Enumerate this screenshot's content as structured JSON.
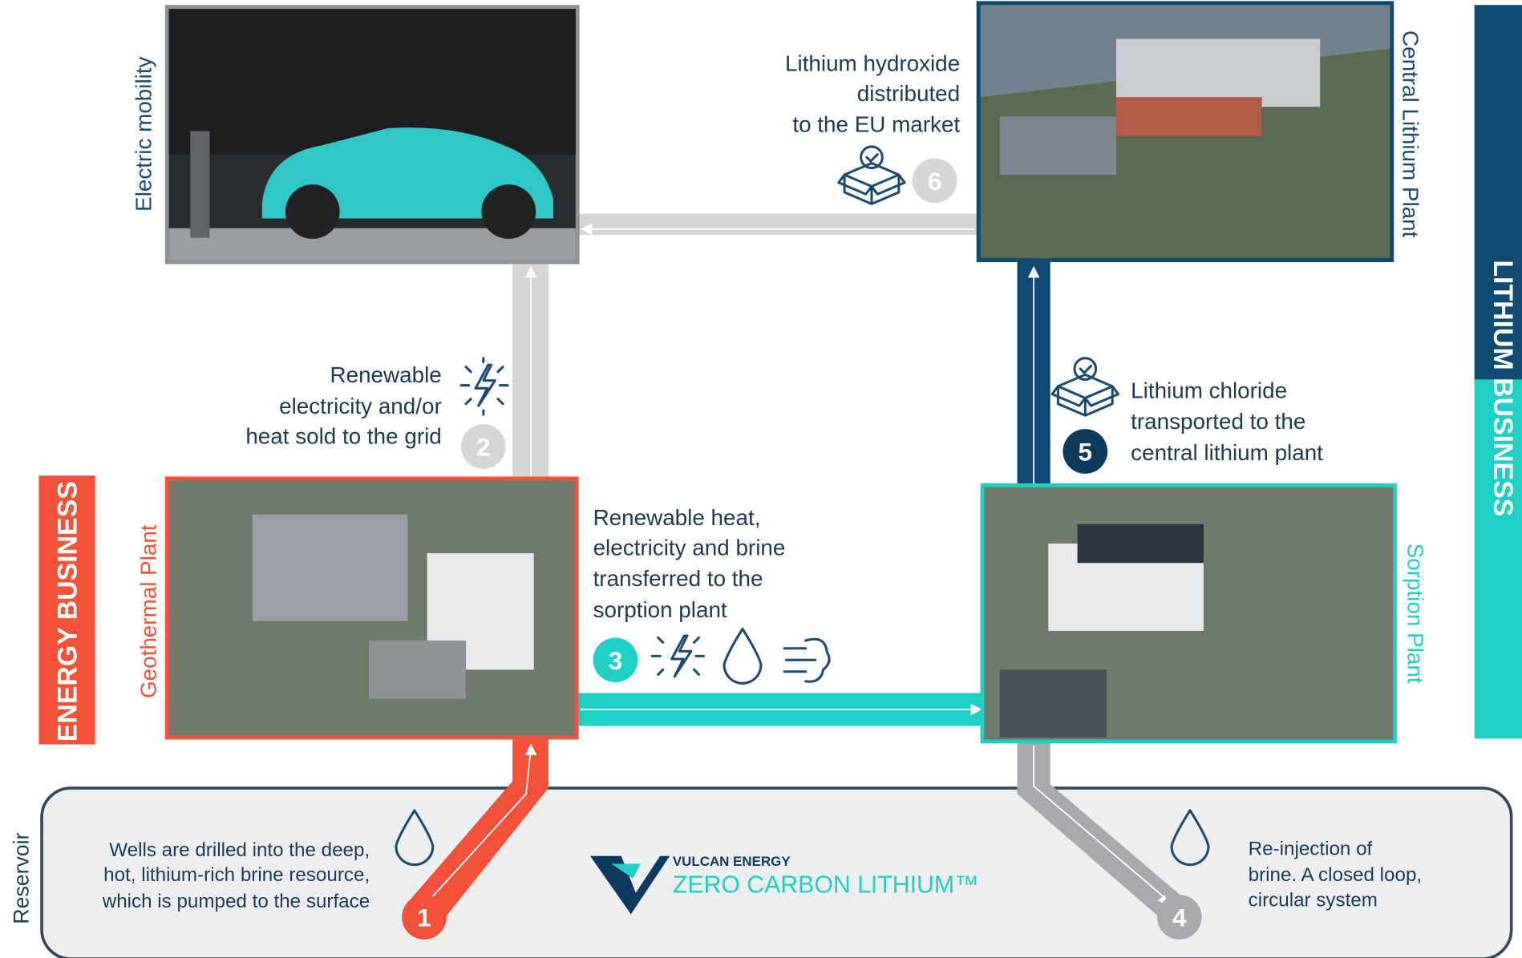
{
  "side_labels": {
    "energy_business": "ENERGY BUSINESS",
    "lithium_business": "LITHIUM BUSINESS",
    "reservoir": "Reservoir"
  },
  "plants": [
    {
      "label": "Electric mobility"
    },
    {
      "label": "Central Lithium Plant"
    },
    {
      "label": "Geothermal Plant"
    },
    {
      "label": "Sorption Plant"
    }
  ],
  "steps": [
    {
      "number": "1",
      "lines": [
        "Wells are drilled into the deep,",
        "hot, lithium-rich  brine resource,",
        "which is pumped to the surface"
      ]
    },
    {
      "number": "2",
      "lines": [
        "Renewable",
        "electricity and/or",
        "heat sold to the grid"
      ]
    },
    {
      "number": "3",
      "lines": [
        "Renewable heat,",
        "electricity and brine",
        "transferred to the",
        "sorption plant"
      ]
    },
    {
      "number": "4",
      "lines": [
        "Re-injection  of",
        "brine. A closed loop,",
        "circular system"
      ]
    },
    {
      "number": "5",
      "lines": [
        "Lithium chloride",
        "transported to the",
        "central lithium plant"
      ]
    },
    {
      "number": "6",
      "lines": [
        "Lithium hydroxide",
        "distributed",
        "to the EU market"
      ]
    }
  ],
  "logo": {
    "brand": "VULCAN ENERGY",
    "tagline": "ZERO CARBON LITHIUM™"
  }
}
